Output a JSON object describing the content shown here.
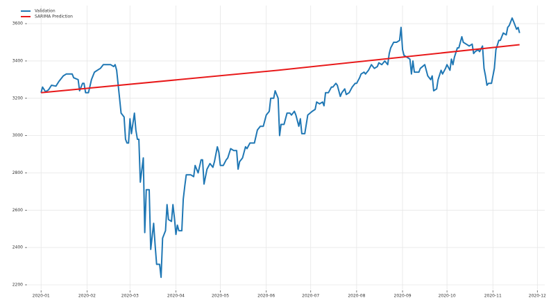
{
  "chart_data": {
    "type": "line",
    "xlim": [
      -9,
      340
    ],
    "ylim": [
      2174,
      3697
    ],
    "xticks": [
      {
        "value": 0,
        "label": "2020-01"
      },
      {
        "value": 31,
        "label": "2020-02"
      },
      {
        "value": 60,
        "label": "2020-03"
      },
      {
        "value": 91,
        "label": "2020-04"
      },
      {
        "value": 121,
        "label": "2020-05"
      },
      {
        "value": 152,
        "label": "2020-06"
      },
      {
        "value": 182,
        "label": "2020-07"
      },
      {
        "value": 213,
        "label": "2020-08"
      },
      {
        "value": 244,
        "label": "2020-09"
      },
      {
        "value": 274,
        "label": "2020-10"
      },
      {
        "value": 305,
        "label": "2020-11"
      },
      {
        "value": 335,
        "label": "2020-12"
      }
    ],
    "yticks": [
      2200,
      2400,
      2600,
      2800,
      3000,
      3200,
      3400,
      3600
    ],
    "grid": true,
    "legend": "upper left",
    "series": [
      {
        "name": "Validation",
        "color": "#1f77b4",
        "x": [
          0,
          1,
          3,
          5,
          7,
          10,
          12,
          15,
          17,
          21,
          22,
          25,
          26,
          28,
          29,
          30,
          32,
          34,
          36,
          38,
          40,
          42,
          45,
          47,
          49,
          50,
          51,
          53,
          54,
          56,
          57,
          58,
          59,
          60,
          61,
          63,
          64,
          65,
          66,
          67,
          69,
          70,
          71,
          73,
          74,
          76,
          77,
          78,
          80,
          81,
          82,
          84,
          85,
          86,
          88,
          89,
          90,
          91,
          92,
          93,
          95,
          96,
          97,
          98,
          101,
          103,
          104,
          106,
          108,
          109,
          110,
          112,
          114,
          116,
          117,
          119,
          120,
          121,
          123,
          125,
          126,
          128,
          130,
          132,
          133,
          134,
          136,
          138,
          139,
          141,
          144,
          146,
          148,
          150,
          152,
          154,
          155,
          157,
          158,
          160,
          161,
          162,
          164,
          166,
          168,
          169,
          171,
          172,
          174,
          175,
          176,
          178,
          180,
          183,
          185,
          186,
          188,
          190,
          191,
          192,
          194,
          196,
          197,
          199,
          200,
          202,
          203,
          205,
          206,
          208,
          210,
          212,
          213,
          215,
          216,
          218,
          219,
          221,
          223,
          225,
          227,
          228,
          230,
          232,
          234,
          235,
          236,
          238,
          240,
          242,
          243,
          244,
          245,
          247,
          249,
          250,
          251,
          252,
          255,
          256,
          259,
          261,
          263,
          264,
          265,
          267,
          268,
          270,
          271,
          273,
          274,
          276,
          277,
          278,
          279,
          281,
          282,
          284,
          285,
          287,
          289,
          291,
          292,
          293,
          295,
          296,
          298,
          299,
          300,
          301,
          302,
          304,
          306,
          307,
          309,
          310,
          312,
          314,
          315,
          316,
          318,
          319,
          321,
          322,
          323
        ],
        "values": [
          3230,
          3260,
          3235,
          3245,
          3270,
          3265,
          3290,
          3320,
          3330,
          3330,
          3310,
          3300,
          3240,
          3280,
          3280,
          3230,
          3230,
          3300,
          3340,
          3350,
          3360,
          3380,
          3380,
          3380,
          3370,
          3380,
          3350,
          3200,
          3120,
          3100,
          2980,
          2960,
          2960,
          3090,
          3010,
          3120,
          3030,
          2980,
          2980,
          2750,
          2880,
          2480,
          2710,
          2710,
          2390,
          2530,
          2410,
          2310,
          2310,
          2240,
          2450,
          2490,
          2630,
          2550,
          2540,
          2630,
          2560,
          2470,
          2520,
          2490,
          2490,
          2660,
          2730,
          2790,
          2790,
          2780,
          2840,
          2800,
          2870,
          2870,
          2740,
          2820,
          2850,
          2830,
          2860,
          2940,
          2910,
          2840,
          2840,
          2870,
          2880,
          2930,
          2920,
          2920,
          2820,
          2860,
          2880,
          2940,
          2930,
          2960,
          2960,
          3030,
          3050,
          3050,
          3110,
          3130,
          3200,
          3200,
          3240,
          3200,
          3000,
          3060,
          3060,
          3120,
          3120,
          3110,
          3130,
          3110,
          3050,
          3090,
          3010,
          3010,
          3110,
          3130,
          3140,
          3180,
          3170,
          3180,
          3160,
          3230,
          3230,
          3260,
          3260,
          3280,
          3270,
          3210,
          3230,
          3250,
          3220,
          3230,
          3260,
          3280,
          3280,
          3310,
          3330,
          3340,
          3330,
          3350,
          3380,
          3360,
          3370,
          3390,
          3380,
          3400,
          3380,
          3440,
          3470,
          3500,
          3500,
          3510,
          3580,
          3460,
          3430,
          3420,
          3410,
          3330,
          3400,
          3340,
          3340,
          3360,
          3380,
          3320,
          3300,
          3320,
          3240,
          3250,
          3300,
          3350,
          3330,
          3360,
          3380,
          3350,
          3410,
          3380,
          3420,
          3470,
          3470,
          3530,
          3500,
          3490,
          3480,
          3490,
          3440,
          3450,
          3460,
          3450,
          3480,
          3360,
          3320,
          3270,
          3280,
          3280,
          3360,
          3460,
          3510,
          3510,
          3550,
          3540,
          3580,
          3590,
          3630,
          3610,
          3570,
          3580,
          3550
        ]
      },
      {
        "name": "SARIMA Prediction",
        "color": "#e8191a",
        "x": [
          0,
          160,
          323
        ],
        "values": [
          3230,
          3350,
          3487
        ]
      }
    ]
  }
}
